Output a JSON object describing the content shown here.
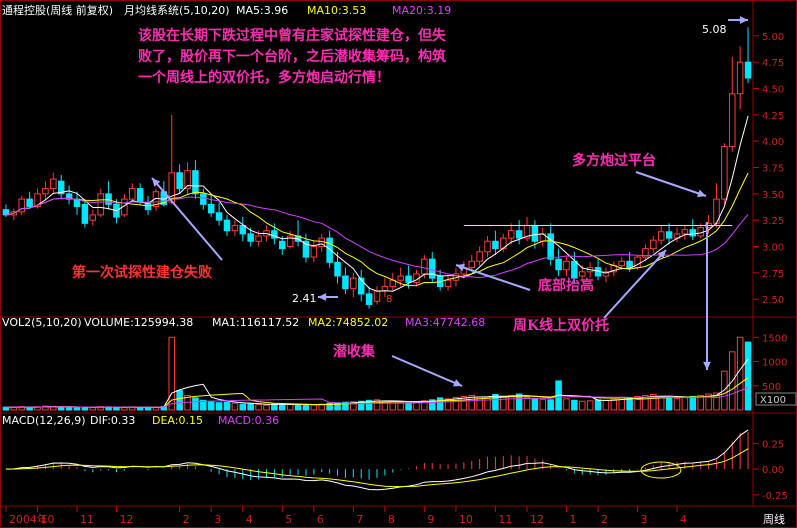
{
  "header": {
    "title": "通程控股(周线 前复权)",
    "ma_system": "月均线系统(5,10,20)",
    "ma5": "MA5:3.96",
    "ma10": "MA10:3.53",
    "ma20": "MA20:3.19"
  },
  "volume_header": {
    "label": "VOL2(5,10,20)",
    "volume": "VOLUME:125994.38",
    "ma1": "MA1:116117.52",
    "ma2": "MA2:74852.02",
    "ma3": "MA3:47742.68"
  },
  "macd_header": {
    "label": "MACD(12,26,9)",
    "dif": "DIF:0.33",
    "dea": "DEA:0.15",
    "macd": "MACD:0.36"
  },
  "annotations": {
    "main_text": [
      "该股在长期下跌过程中曾有庄家试探性建仓，但失",
      "败了，股价再下一个台阶，之后潜收集筹码，构筑",
      "一个周线上的双价托，多方炮启动行情！"
    ],
    "first_test": "第一次试探性建仓失败",
    "platform": "多方炮过平台",
    "bottom_rise": "底部抬高",
    "double_support": "周K线上双价托",
    "accumulate": "潜收集",
    "high_label": "5.08",
    "low_label": "2.41",
    "marker": "8",
    "vol_scale_badge": "X100"
  },
  "price_axis": [
    "5.00",
    "4.75",
    "4.50",
    "4.25",
    "4.00",
    "3.75",
    "3.50",
    "3.25",
    "3.00",
    "2.75",
    "2.50"
  ],
  "vol_axis": [
    "1500",
    "1000",
    "500"
  ],
  "macd_axis": [
    "0.25",
    "0.00",
    "-0.25"
  ],
  "time_axis": [
    "2004年",
    "10",
    "11",
    "12",
    "2",
    "3",
    "4",
    "5",
    "6",
    "7",
    "8",
    "9",
    "10",
    "11",
    "12",
    "1",
    "2",
    "3",
    "4"
  ],
  "period_label": "周线",
  "colors": {
    "up": "#ff3a3a",
    "down": "#00e5ff",
    "ma5": "#ffffff",
    "ma10": "#ffff00",
    "ma20": "#d040ff",
    "annotation": "#ff2db4",
    "annotation_red": "#ff3333",
    "arrow": "#a8a8ff",
    "grid": "#8b0000"
  },
  "chart_data": {
    "type": "candlestick",
    "period": "weekly",
    "price_range": [
      2.35,
      5.15
    ],
    "resistance_level": 3.2,
    "high": 5.08,
    "low": 2.41,
    "candles": [
      [
        3.35,
        3.4,
        3.3,
        3.28
      ],
      [
        3.3,
        3.36,
        3.33,
        3.25
      ],
      [
        3.33,
        3.48,
        3.45,
        3.3
      ],
      [
        3.45,
        3.52,
        3.38,
        3.36
      ],
      [
        3.38,
        3.55,
        3.5,
        3.36
      ],
      [
        3.5,
        3.62,
        3.55,
        3.45
      ],
      [
        3.55,
        3.7,
        3.64,
        3.5
      ],
      [
        3.62,
        3.68,
        3.5,
        3.45
      ],
      [
        3.5,
        3.58,
        3.45,
        3.4
      ],
      [
        3.45,
        3.52,
        3.38,
        3.3
      ],
      [
        3.4,
        3.45,
        3.22,
        3.18
      ],
      [
        3.25,
        3.35,
        3.3,
        3.2
      ],
      [
        3.3,
        3.55,
        3.5,
        3.28
      ],
      [
        3.5,
        3.62,
        3.4,
        3.35
      ],
      [
        3.4,
        3.45,
        3.28,
        3.22
      ],
      [
        3.3,
        3.5,
        3.45,
        3.28
      ],
      [
        3.45,
        3.6,
        3.55,
        3.42
      ],
      [
        3.55,
        3.6,
        3.42,
        3.4
      ],
      [
        3.42,
        3.48,
        3.35,
        3.3
      ],
      [
        3.38,
        3.55,
        3.52,
        3.34
      ],
      [
        3.52,
        3.62,
        3.4,
        3.38
      ],
      [
        3.42,
        4.25,
        3.7,
        3.4
      ],
      [
        3.7,
        3.78,
        3.55,
        3.5
      ],
      [
        3.55,
        3.8,
        3.72,
        3.5
      ],
      [
        3.72,
        3.82,
        3.5,
        3.45
      ],
      [
        3.5,
        3.55,
        3.4,
        3.35
      ],
      [
        3.4,
        3.48,
        3.32,
        3.28
      ],
      [
        3.32,
        3.42,
        3.25,
        3.2
      ],
      [
        3.25,
        3.3,
        3.15,
        3.1
      ],
      [
        3.15,
        3.25,
        3.2,
        3.1
      ],
      [
        3.2,
        3.28,
        3.12,
        3.05
      ],
      [
        3.12,
        3.18,
        3.05,
        3.0
      ],
      [
        3.05,
        3.15,
        3.1,
        3.0
      ],
      [
        3.1,
        3.2,
        3.15,
        3.05
      ],
      [
        3.15,
        3.22,
        3.08,
        3.02
      ],
      [
        3.05,
        3.1,
        2.98,
        2.92
      ],
      [
        3.0,
        3.15,
        3.1,
        2.98
      ],
      [
        3.1,
        3.25,
        3.05,
        3.0
      ],
      [
        3.05,
        3.12,
        2.9,
        2.85
      ],
      [
        2.9,
        3.05,
        3.0,
        2.85
      ],
      [
        3.0,
        3.12,
        3.08,
        2.95
      ],
      [
        3.08,
        3.15,
        2.85,
        2.8
      ],
      [
        2.85,
        2.95,
        2.72,
        2.65
      ],
      [
        2.72,
        2.8,
        2.6,
        2.55
      ],
      [
        2.6,
        2.75,
        2.7,
        2.52
      ],
      [
        2.7,
        2.78,
        2.55,
        2.48
      ],
      [
        2.55,
        2.62,
        2.45,
        2.41
      ],
      [
        2.48,
        2.62,
        2.58,
        2.45
      ],
      [
        2.58,
        2.7,
        2.62,
        2.52
      ],
      [
        2.62,
        2.75,
        2.68,
        2.58
      ],
      [
        2.68,
        2.8,
        2.72,
        2.62
      ],
      [
        2.72,
        2.82,
        2.66,
        2.6
      ],
      [
        2.66,
        2.78,
        2.74,
        2.62
      ],
      [
        2.74,
        2.92,
        2.88,
        2.7
      ],
      [
        2.88,
        2.95,
        2.7,
        2.66
      ],
      [
        2.72,
        2.78,
        2.62,
        2.58
      ],
      [
        2.62,
        2.72,
        2.68,
        2.58
      ],
      [
        2.68,
        2.8,
        2.74,
        2.62
      ],
      [
        2.74,
        2.86,
        2.8,
        2.7
      ],
      [
        2.8,
        2.92,
        2.86,
        2.76
      ],
      [
        2.86,
        3.0,
        2.95,
        2.82
      ],
      [
        2.95,
        3.1,
        3.05,
        2.9
      ],
      [
        3.05,
        3.15,
        2.98,
        2.92
      ],
      [
        2.98,
        3.12,
        3.08,
        2.95
      ],
      [
        3.08,
        3.22,
        3.15,
        3.02
      ],
      [
        3.15,
        3.25,
        3.08,
        3.02
      ],
      [
        3.08,
        3.28,
        3.2,
        3.05
      ],
      [
        3.2,
        3.25,
        3.05,
        2.98
      ],
      [
        3.05,
        3.18,
        3.12,
        3.0
      ],
      [
        3.12,
        3.22,
        2.88,
        2.82
      ],
      [
        2.88,
        2.98,
        2.78,
        2.72
      ],
      [
        2.78,
        2.9,
        2.86,
        2.72
      ],
      [
        2.86,
        2.95,
        2.7,
        2.65
      ],
      [
        2.72,
        2.82,
        2.76,
        2.66
      ],
      [
        2.76,
        2.85,
        2.8,
        2.7
      ],
      [
        2.8,
        2.88,
        2.72,
        2.68
      ],
      [
        2.72,
        2.8,
        2.76,
        2.66
      ],
      [
        2.76,
        2.86,
        2.82,
        2.72
      ],
      [
        2.82,
        2.9,
        2.86,
        2.78
      ],
      [
        2.86,
        2.95,
        2.8,
        2.76
      ],
      [
        2.8,
        2.92,
        2.9,
        2.78
      ],
      [
        2.9,
        3.02,
        2.98,
        2.86
      ],
      [
        2.98,
        3.1,
        3.06,
        2.94
      ],
      [
        3.06,
        3.2,
        3.14,
        3.02
      ],
      [
        3.14,
        3.22,
        3.08,
        3.02
      ],
      [
        3.08,
        3.18,
        3.12,
        3.04
      ],
      [
        3.12,
        3.2,
        3.16,
        3.06
      ],
      [
        3.16,
        3.26,
        3.1,
        3.06
      ],
      [
        3.1,
        3.22,
        3.18,
        3.08
      ],
      [
        3.18,
        3.3,
        3.22,
        3.12
      ],
      [
        3.22,
        3.6,
        3.45,
        3.18
      ],
      [
        3.45,
        3.98,
        3.95,
        3.4
      ],
      [
        3.95,
        4.8,
        4.45,
        3.9
      ],
      [
        4.45,
        4.9,
        4.75,
        4.3
      ],
      [
        4.75,
        5.08,
        4.6,
        4.55
      ]
    ],
    "volume": [
      60,
      55,
      70,
      50,
      65,
      80,
      75,
      60,
      55,
      50,
      60,
      55,
      70,
      60,
      55,
      50,
      65,
      60,
      55,
      50,
      70,
      1500,
      400,
      300,
      250,
      200,
      180,
      150,
      160,
      140,
      120,
      130,
      110,
      100,
      120,
      130,
      115,
      110,
      100,
      105,
      120,
      140,
      150,
      160,
      170,
      180,
      200,
      210,
      180,
      170,
      160,
      150,
      170,
      190,
      210,
      250,
      230,
      260,
      280,
      300,
      270,
      250,
      320,
      280,
      300,
      330,
      260,
      240,
      220,
      210,
      600,
      230,
      200,
      180,
      190,
      210,
      200,
      220,
      260,
      240,
      280,
      300,
      320,
      280,
      250,
      240,
      260,
      280,
      300,
      330,
      350,
      800,
      1200,
      1500,
      1400
    ],
    "macd_bars_extent": [
      -0.25,
      0.36
    ],
    "dif": 0.33,
    "dea": 0.15,
    "macd": 0.36
  }
}
